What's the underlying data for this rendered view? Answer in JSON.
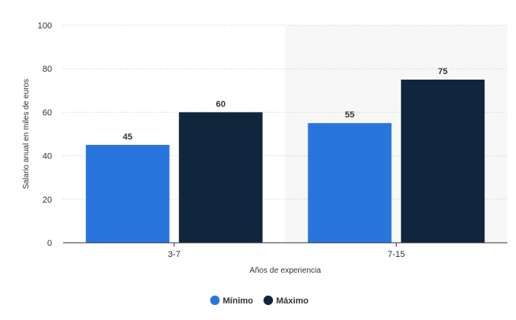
{
  "chart_data": {
    "type": "bar",
    "categories": [
      "3-7",
      "7-15"
    ],
    "series": [
      {
        "name": "Mínimo",
        "values": [
          45,
          55
        ],
        "color": "#2876dd"
      },
      {
        "name": "Máximo",
        "values": [
          60,
          75
        ],
        "color": "#10263d"
      }
    ],
    "xlabel": "Años de experiencia",
    "ylabel": "Salario anual en miles de euros",
    "ylim": [
      0,
      100
    ],
    "yticks": [
      0,
      20,
      40,
      60,
      80,
      100
    ],
    "grid": true,
    "legend_position": "bottom-center",
    "highlight_category": "7-15",
    "highlight_color": "#f7f7f7",
    "gridline_color": "#cccccc",
    "axis_color": "#333333"
  }
}
